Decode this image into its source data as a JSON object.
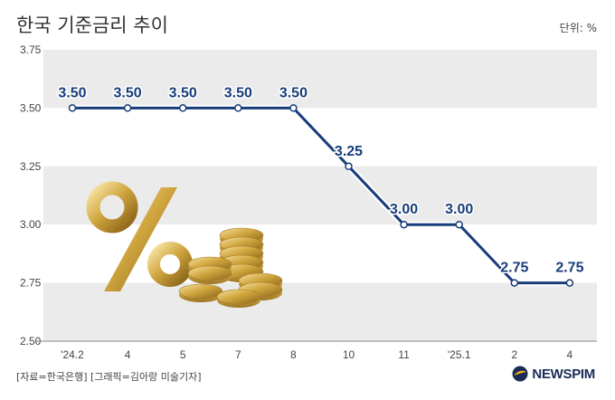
{
  "header": {
    "title": "한국 기준금리 추이",
    "unit": "단위: %"
  },
  "footer": {
    "source": "[자료=한국은행] [그래픽=김아랑 미술기자]",
    "logo_text": "NEWSPIM"
  },
  "colors": {
    "line": "#173c7a",
    "band": "#ebebeb",
    "label": "#173c7a"
  },
  "chart_data": {
    "type": "line",
    "title": "한국 기준금리 추이",
    "x": [
      "'24.2",
      "4",
      "5",
      "7",
      "8",
      "10",
      "11",
      "'25.1",
      "2",
      "4"
    ],
    "y": [
      3.5,
      3.5,
      3.5,
      3.5,
      3.5,
      3.25,
      3.0,
      3.0,
      2.75,
      2.75
    ],
    "data_labels": [
      "3.50",
      "3.50",
      "3.50",
      "3.50",
      "3.50",
      "3.25",
      "3.00",
      "3.00",
      "2.75",
      "2.75"
    ],
    "yticks": [
      "2.50",
      "2.75",
      "3.00",
      "3.25",
      "3.50",
      "3.75"
    ],
    "ylim": [
      2.5,
      3.75
    ],
    "grid": "alternating horizontal bands"
  }
}
